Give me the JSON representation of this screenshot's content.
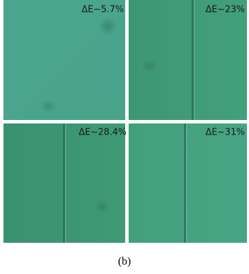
{
  "panels": [
    {
      "label": "ΔE~5.7%"
    },
    {
      "label": "ΔE~23%"
    },
    {
      "label": "ΔE~28.4%"
    },
    {
      "label": "ΔE~31%"
    }
  ],
  "caption": "(b)"
}
